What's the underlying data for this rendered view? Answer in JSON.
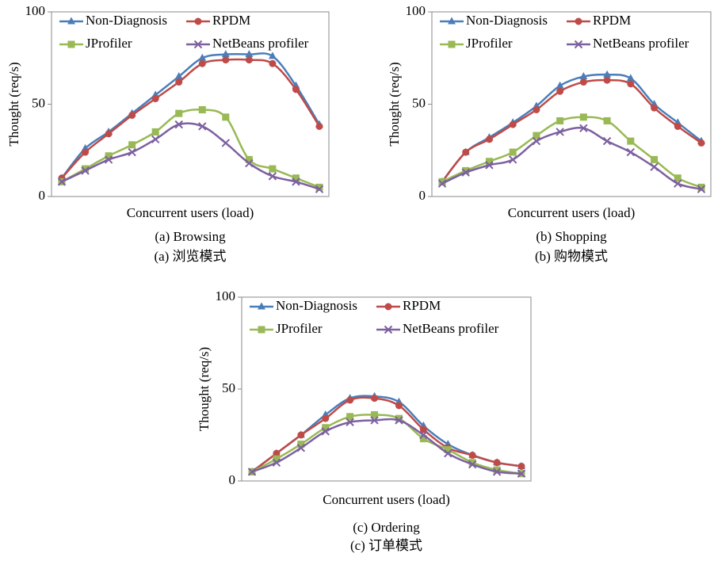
{
  "chart_data": [
    {
      "type": "line",
      "caption": "(a) Browsing",
      "caption_zh": "(a)  浏览模式",
      "x_label": "Concurrent users (load)",
      "y_label": "Thought (req/s)",
      "categories": [
        null,
        null,
        null,
        null,
        null,
        null,
        null,
        null,
        null,
        null,
        null,
        null
      ],
      "ylim": [
        0,
        100
      ],
      "yticks": [
        0,
        50,
        100
      ],
      "grid": false,
      "series": [
        {
          "name": "Non-Diagnosis",
          "color": "#4a7ebb",
          "marker": "triangle",
          "values": [
            10,
            26,
            35,
            45,
            55,
            65,
            75,
            77,
            77,
            76,
            60,
            39
          ]
        },
        {
          "name": "RPDM",
          "color": "#be4b48",
          "marker": "circle",
          "values": [
            10,
            24,
            34,
            44,
            53,
            62,
            72,
            74,
            74,
            72,
            58,
            38
          ]
        },
        {
          "name": "JProfiler",
          "color": "#98b954",
          "marker": "square",
          "values": [
            8,
            15,
            22,
            28,
            35,
            45,
            47,
            43,
            20,
            15,
            10,
            5
          ]
        },
        {
          "name": "NetBeans profiler",
          "color": "#7d60a0",
          "marker": "cross",
          "values": [
            8,
            14,
            20,
            24,
            31,
            39,
            38,
            29,
            18,
            11,
            8,
            4
          ]
        }
      ]
    },
    {
      "type": "line",
      "caption": "(b) Shopping",
      "caption_zh": "(b)  购物模式",
      "x_label": "Concurrent users (load)",
      "y_label": "Thought (req/s)",
      "categories": [
        null,
        null,
        null,
        null,
        null,
        null,
        null,
        null,
        null,
        null,
        null,
        null
      ],
      "ylim": [
        0,
        100
      ],
      "yticks": [
        0,
        50,
        100
      ],
      "grid": false,
      "series": [
        {
          "name": "Non-Diagnosis",
          "color": "#4a7ebb",
          "marker": "triangle",
          "values": [
            8,
            24,
            32,
            40,
            49,
            60,
            65,
            66,
            64,
            50,
            40,
            30
          ]
        },
        {
          "name": "RPDM",
          "color": "#be4b48",
          "marker": "circle",
          "values": [
            8,
            24,
            31,
            39,
            47,
            57,
            62,
            63,
            61,
            48,
            38,
            29
          ]
        },
        {
          "name": "JProfiler",
          "color": "#98b954",
          "marker": "square",
          "values": [
            8,
            14,
            19,
            24,
            33,
            41,
            43,
            41,
            30,
            20,
            10,
            5
          ]
        },
        {
          "name": "NetBeans profiler",
          "color": "#7d60a0",
          "marker": "cross",
          "values": [
            7,
            13,
            17,
            20,
            30,
            35,
            37,
            30,
            24,
            16,
            7,
            4
          ]
        }
      ]
    },
    {
      "type": "line",
      "caption": "(c) Ordering",
      "caption_zh": "(c)  订单模式",
      "x_label": "Concurrent users (load)",
      "y_label": "Thought (req/s)",
      "categories": [
        null,
        null,
        null,
        null,
        null,
        null,
        null,
        null,
        null,
        null,
        null,
        null
      ],
      "ylim": [
        0,
        100
      ],
      "yticks": [
        0,
        50,
        100
      ],
      "grid": false,
      "series": [
        {
          "name": "Non-Diagnosis",
          "color": "#4a7ebb",
          "marker": "triangle",
          "values": [
            5,
            15,
            25,
            36,
            45,
            46,
            43,
            30,
            20,
            14,
            10,
            8
          ]
        },
        {
          "name": "RPDM",
          "color": "#be4b48",
          "marker": "circle",
          "values": [
            5,
            15,
            25,
            34,
            44,
            45,
            41,
            28,
            18,
            14,
            10,
            8
          ]
        },
        {
          "name": "JProfiler",
          "color": "#98b954",
          "marker": "square",
          "values": [
            5,
            12,
            20,
            29,
            35,
            36,
            34,
            23,
            17,
            10,
            6,
            4
          ]
        },
        {
          "name": "NetBeans profiler",
          "color": "#7d60a0",
          "marker": "cross",
          "values": [
            5,
            10,
            18,
            27,
            32,
            33,
            33,
            25,
            15,
            9,
            5,
            4
          ]
        }
      ]
    }
  ]
}
